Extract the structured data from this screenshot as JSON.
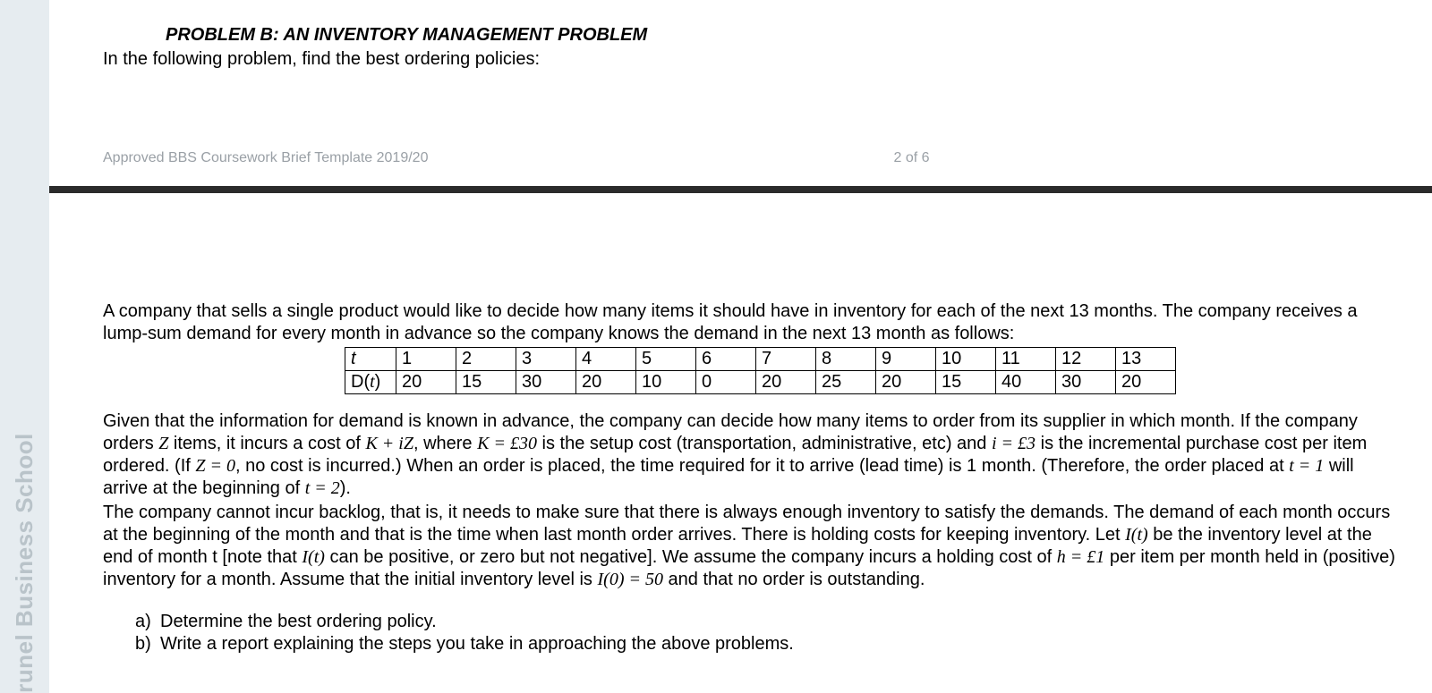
{
  "brand": "runel Business School",
  "header": {
    "title": "PROBLEM B: AN INVENTORY MANAGEMENT PROBLEM",
    "subtitle": "In the following problem, find the best ordering policies:",
    "template_note": "Approved BBS Coursework Brief Template 2019/20",
    "page_number": "2 of 6"
  },
  "body": {
    "intro1": "A company that sells a single product would like to decide how many items it should have in inventory for each of the next 13 months. The company receives a lump-sum demand for every month in advance so the company knows the demand in the next 13 month as follows:",
    "table": {
      "row1_header": "t",
      "row2_header": "D(t)",
      "months": [
        "1",
        "2",
        "3",
        "4",
        "5",
        "6",
        "7",
        "8",
        "9",
        "10",
        "11",
        "12",
        "13"
      ],
      "demands": [
        "20",
        "15",
        "30",
        "20",
        "10",
        "0",
        "20",
        "25",
        "20",
        "15",
        "40",
        "30",
        "20"
      ]
    },
    "para2_a": "Given that the information for demand is known in advance, the company can decide how many items to order from its supplier in which month. If the company orders ",
    "Z": "Z",
    "para2_b": " items, it incurs a cost of ",
    "KplusiZ": "K + iZ",
    "para2_c": ", where ",
    "Keq": "K = £30",
    "para2_d": " is the setup cost (transportation, administrative, etc) and ",
    "ieq": "i = £3",
    "para2_e": " is the incremental purchase cost per item ordered.  (If ",
    "Zeq0": "Z = 0",
    "para2_f": ", no cost is incurred.) When an order is placed, the time required for it to arrive (lead time) is 1 month. (Therefore, the order placed at ",
    "teq1": "t = 1",
    "para2_g": " will arrive at the beginning of ",
    "teq2": "t = 2",
    "para2_h": ").",
    "para3_a": "The company cannot incur backlog, that is, it needs to make sure that there is always enough inventory to satisfy the demands. The demand of each month occurs at the beginning of the month and that is the time when last month order arrives. There is holding costs for keeping inventory. Let ",
    "It": "I(t)",
    "para3_b": " be the inventory level at the end of month t [note that ",
    "It2": "I(t)",
    "para3_c": " can be positive, or zero but not negative]. We assume the company incurs a holding cost of ",
    "heq": "h = £1",
    "para3_d": " per item per month held in (positive) inventory for a month. Assume that the initial inventory level is ",
    "I0eq": "I(0) = 50",
    "para3_e": " and that no order is outstanding.",
    "qa_label": "a)",
    "qa_text": "Determine the best ordering policy.",
    "qb_label": "b)",
    "qb_text": "Write a report explaining the steps you take in approaching the above problems."
  }
}
